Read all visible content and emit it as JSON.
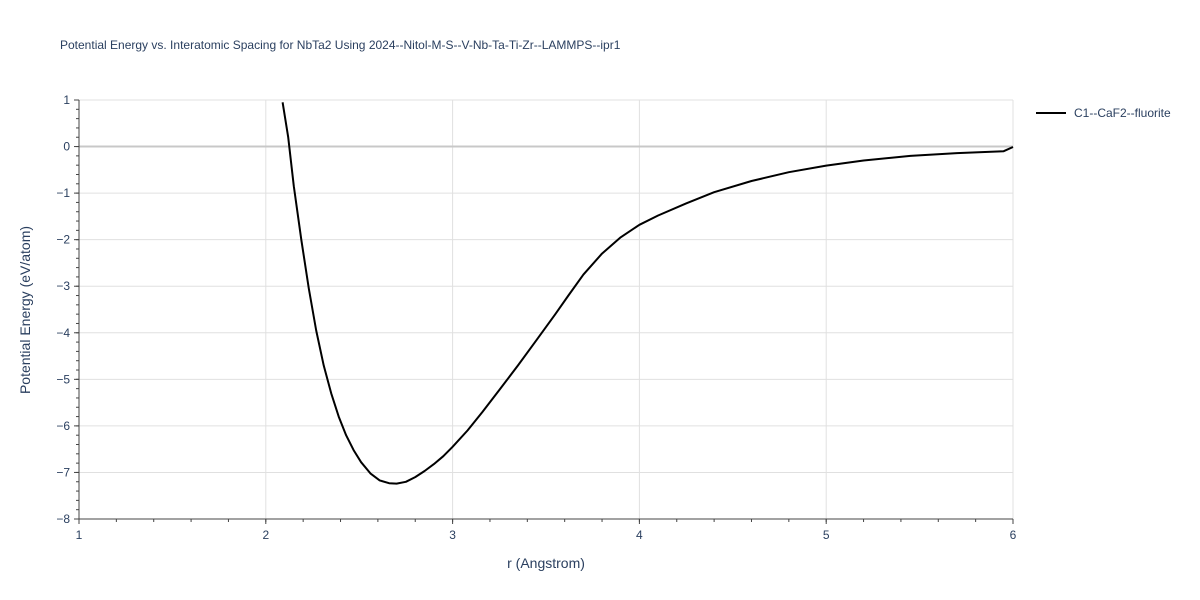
{
  "chart_data": {
    "type": "line",
    "title": "Potential Energy vs. Interatomic Spacing for NbTa2 Using 2024--Nitol-M-S--V-Nb-Ta-Ti-Zr--LAMMPS--ipr1",
    "xlabel": "r (Angstrom)",
    "ylabel": "Potential Energy (eV/atom)",
    "xlim": [
      1,
      6
    ],
    "ylim": [
      -8,
      1
    ],
    "xticks": [
      1,
      2,
      3,
      4,
      5,
      6
    ],
    "yticks": [
      1,
      0,
      -1,
      -2,
      -3,
      -4,
      -5,
      -6,
      -7,
      -8
    ],
    "ytick_labels": [
      "1",
      "0",
      "−1",
      "−2",
      "−3",
      "−4",
      "−5",
      "−6",
      "−7",
      "−8"
    ],
    "grid": true,
    "legend_position": "top-right",
    "series": [
      {
        "name": "C1--CaF2--fluorite",
        "color": "#000000",
        "x": [
          2.09,
          2.12,
          2.15,
          2.19,
          2.23,
          2.27,
          2.31,
          2.35,
          2.39,
          2.43,
          2.47,
          2.51,
          2.56,
          2.61,
          2.66,
          2.7,
          2.75,
          2.8,
          2.85,
          2.9,
          2.95,
          3.0,
          3.08,
          3.16,
          3.25,
          3.35,
          3.45,
          3.55,
          3.62,
          3.7,
          3.8,
          3.9,
          4.0,
          4.1,
          4.25,
          4.4,
          4.6,
          4.8,
          5.0,
          5.2,
          5.45,
          5.7,
          5.95,
          6.0
        ],
        "y": [
          0.95,
          0.2,
          -0.85,
          -2.0,
          -3.05,
          -3.95,
          -4.7,
          -5.3,
          -5.8,
          -6.2,
          -6.52,
          -6.78,
          -7.02,
          -7.17,
          -7.23,
          -7.24,
          -7.2,
          -7.1,
          -6.97,
          -6.82,
          -6.65,
          -6.45,
          -6.1,
          -5.7,
          -5.23,
          -4.7,
          -4.15,
          -3.6,
          -3.2,
          -2.75,
          -2.3,
          -1.95,
          -1.68,
          -1.48,
          -1.22,
          -0.98,
          -0.74,
          -0.55,
          -0.41,
          -0.3,
          -0.2,
          -0.14,
          -0.1,
          -0.01
        ]
      }
    ]
  }
}
